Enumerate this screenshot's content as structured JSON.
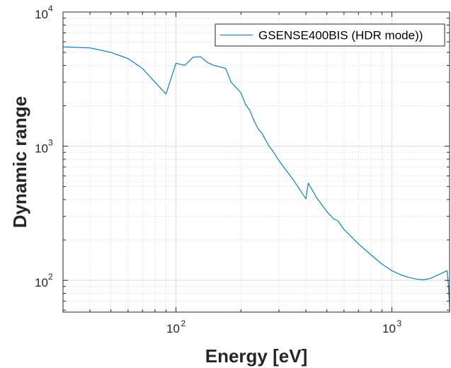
{
  "chart_data": {
    "type": "line",
    "xlabel": "Energy [eV]",
    "ylabel": "Dynamic range",
    "xscale": "log",
    "yscale": "log",
    "xlim": [
      30,
      1850
    ],
    "ylim": [
      58,
      10000
    ],
    "grid": true,
    "minor_grid": true,
    "legend_position": "top-right",
    "x_ticks": [
      {
        "base": "10",
        "exp": "2",
        "value": 100
      },
      {
        "base": "10",
        "exp": "3",
        "value": 1000
      }
    ],
    "y_ticks": [
      {
        "base": "10",
        "exp": "2",
        "value": 100
      },
      {
        "base": "10",
        "exp": "3",
        "value": 1000
      },
      {
        "base": "10",
        "exp": "4",
        "value": 10000
      }
    ],
    "series": [
      {
        "name": "GSENSE400BIS (HDR mode))",
        "color": "#0072BD",
        "x": [
          30,
          40,
          50,
          60,
          70,
          80,
          90,
          100,
          110,
          120,
          130,
          140,
          150,
          170,
          180,
          200,
          210,
          220,
          230,
          240,
          250,
          270,
          280,
          300,
          350,
          400,
          410,
          450,
          500,
          540,
          560,
          600,
          700,
          800,
          900,
          1000,
          1100,
          1200,
          1300,
          1400,
          1500,
          1600,
          1700,
          1800,
          1830,
          1850
        ],
        "values": [
          5500,
          5400,
          5000,
          4500,
          3800,
          3000,
          2450,
          4150,
          4000,
          4600,
          4650,
          4200,
          4000,
          3800,
          3000,
          2500,
          2050,
          1850,
          1550,
          1350,
          1250,
          1000,
          930,
          780,
          560,
          405,
          530,
          410,
          325,
          285,
          280,
          240,
          187,
          155,
          132,
          118,
          110,
          105,
          102,
          101,
          103,
          108,
          113,
          118,
          90,
          62
        ]
      }
    ]
  }
}
